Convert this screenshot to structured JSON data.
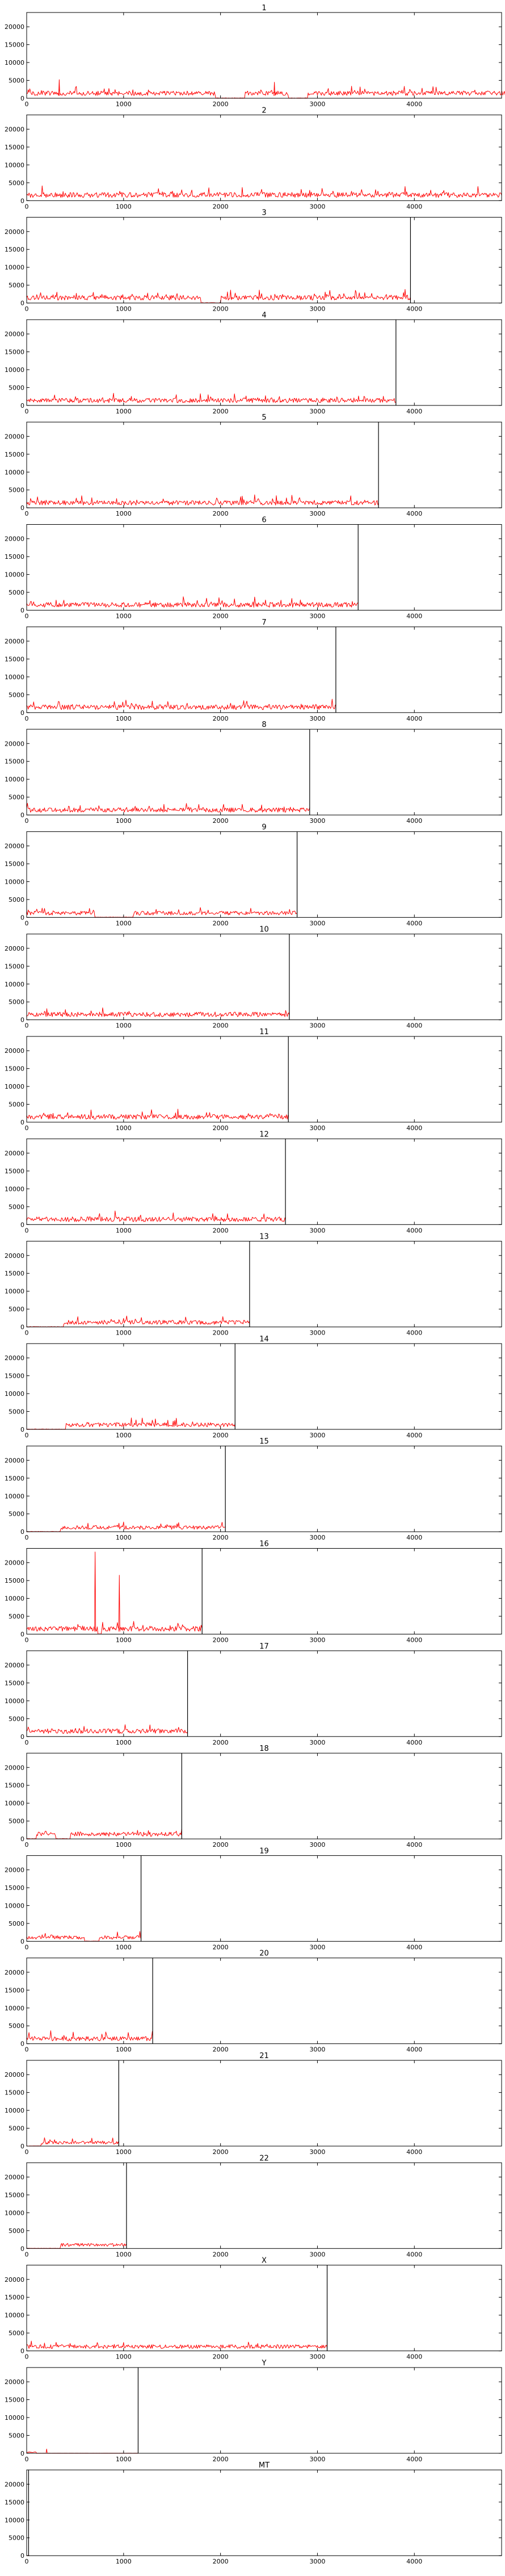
{
  "chart_data": {
    "type": "line",
    "xlim": [
      0,
      4900
    ],
    "ylim": [
      0,
      24000
    ],
    "x_ticks": [
      0,
      1000,
      2000,
      3000,
      4000
    ],
    "y_ticks": [
      0,
      5000,
      10000,
      15000,
      20000
    ],
    "grid": false,
    "legend": "none",
    "colors": {
      "trace": "#ff0000",
      "boundary": "#000000",
      "axes": "#000000"
    },
    "panels": [
      {
        "title": "1",
        "length": 4950,
        "baseline": 1400,
        "dips": [
          [
            1950,
            2250
          ],
          [
            2700,
            2900
          ]
        ],
        "spikes": [
          [
            330,
            5200
          ],
          [
            2550,
            4500
          ]
        ]
      },
      {
        "title": "2",
        "length": 4900,
        "baseline": 1600,
        "dips": [],
        "spikes": []
      },
      {
        "title": "3",
        "length": 3960,
        "baseline": 1500,
        "dips": [
          [
            1800,
            2000
          ]
        ],
        "spikes": []
      },
      {
        "title": "4",
        "length": 3810,
        "baseline": 1400,
        "dips": [],
        "spikes": []
      },
      {
        "title": "5",
        "length": 3630,
        "baseline": 1400,
        "dips": [],
        "spikes": []
      },
      {
        "title": "6",
        "length": 3420,
        "baseline": 1500,
        "dips": [],
        "spikes": []
      },
      {
        "title": "7",
        "length": 3190,
        "baseline": 1500,
        "dips": [],
        "spikes": []
      },
      {
        "title": "8",
        "length": 2920,
        "baseline": 1400,
        "dips": [],
        "spikes": []
      },
      {
        "title": "9",
        "length": 2790,
        "baseline": 1200,
        "dips": [
          [
            700,
            1100
          ]
        ],
        "spikes": []
      },
      {
        "title": "10",
        "length": 2710,
        "baseline": 1500,
        "dips": [],
        "spikes": []
      },
      {
        "title": "11",
        "length": 2700,
        "baseline": 1500,
        "dips": [],
        "spikes": []
      },
      {
        "title": "12",
        "length": 2670,
        "baseline": 1500,
        "dips": [],
        "spikes": []
      },
      {
        "title": "13",
        "length": 2300,
        "baseline": 1300,
        "dips": [
          [
            0,
            380
          ]
        ],
        "spikes": []
      },
      {
        "title": "14",
        "length": 2150,
        "baseline": 1300,
        "dips": [
          [
            0,
            400
          ]
        ],
        "spikes": []
      },
      {
        "title": "15",
        "length": 2050,
        "baseline": 1200,
        "dips": [
          [
            0,
            350
          ]
        ],
        "spikes": []
      },
      {
        "title": "16",
        "length": 1810,
        "baseline": 1500,
        "dips": [
          [
            730,
            770
          ]
        ],
        "spikes": [
          [
            700,
            23000
          ],
          [
            950,
            16500
          ]
        ]
      },
      {
        "title": "17",
        "length": 1660,
        "baseline": 1500,
        "dips": [],
        "spikes": []
      },
      {
        "title": "18",
        "length": 1600,
        "baseline": 1300,
        "dips": [
          [
            0,
            100
          ],
          [
            300,
            450
          ]
        ],
        "spikes": []
      },
      {
        "title": "19",
        "length": 1180,
        "baseline": 1100,
        "dips": [
          [
            600,
            750
          ]
        ],
        "spikes": []
      },
      {
        "title": "20",
        "length": 1300,
        "baseline": 1400,
        "dips": [],
        "spikes": []
      },
      {
        "title": "21",
        "length": 950,
        "baseline": 1000,
        "dips": [
          [
            0,
            150
          ]
        ],
        "spikes": []
      },
      {
        "title": "22",
        "length": 1030,
        "baseline": 1000,
        "dips": [
          [
            0,
            350
          ]
        ],
        "spikes": []
      },
      {
        "title": "X",
        "length": 3100,
        "baseline": 1200,
        "dips": [],
        "spikes": []
      },
      {
        "title": "Y",
        "length": 1150,
        "baseline": 300,
        "dips": [
          [
            100,
            1150
          ]
        ],
        "spikes": [
          [
            200,
            1200
          ]
        ]
      },
      {
        "title": "MT",
        "length": 20,
        "baseline": 0,
        "dips": [],
        "spikes": []
      }
    ]
  }
}
